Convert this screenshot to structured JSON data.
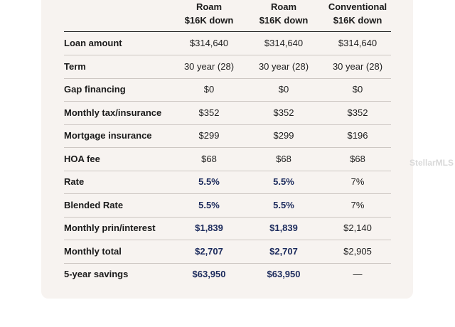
{
  "table": {
    "columns": [
      {
        "line1": "Roam",
        "line2": "$16K down"
      },
      {
        "line1": "Roam",
        "line2": "$16K down"
      },
      {
        "line1": "Conventional",
        "line2": "$16K down"
      }
    ],
    "rows": [
      {
        "label": "Loan amount",
        "values": [
          "$314,640",
          "$314,640",
          "$314,640"
        ]
      },
      {
        "label": "Term",
        "values": [
          "30 year (28)",
          "30 year (28)",
          "30 year (28)"
        ]
      },
      {
        "label": "Gap financing",
        "values": [
          "$0",
          "$0",
          "$0"
        ]
      },
      {
        "label": "Monthly tax/insurance",
        "values": [
          "$352",
          "$352",
          "$352"
        ]
      },
      {
        "label": "Mortgage insurance",
        "values": [
          "$299",
          "$299",
          "$196"
        ]
      },
      {
        "label": "HOA fee",
        "values": [
          "$68",
          "$68",
          "$68"
        ]
      },
      {
        "label": "Rate",
        "values": [
          "5.5%",
          "5.5%",
          "7%"
        ]
      },
      {
        "label": "Blended Rate",
        "values": [
          "5.5%",
          "5.5%",
          "7%"
        ]
      },
      {
        "label": "Monthly prin/interest",
        "values": [
          "$1,839",
          "$1,839",
          "$2,140"
        ]
      },
      {
        "label": "Monthly total",
        "values": [
          "$2,707",
          "$2,707",
          "$2,905"
        ]
      },
      {
        "label": "5-year savings",
        "values": [
          "$63,950",
          "$63,950",
          "—"
        ]
      }
    ],
    "highlight_color": "#1b2a5c"
  },
  "watermark": "StellarMLS"
}
